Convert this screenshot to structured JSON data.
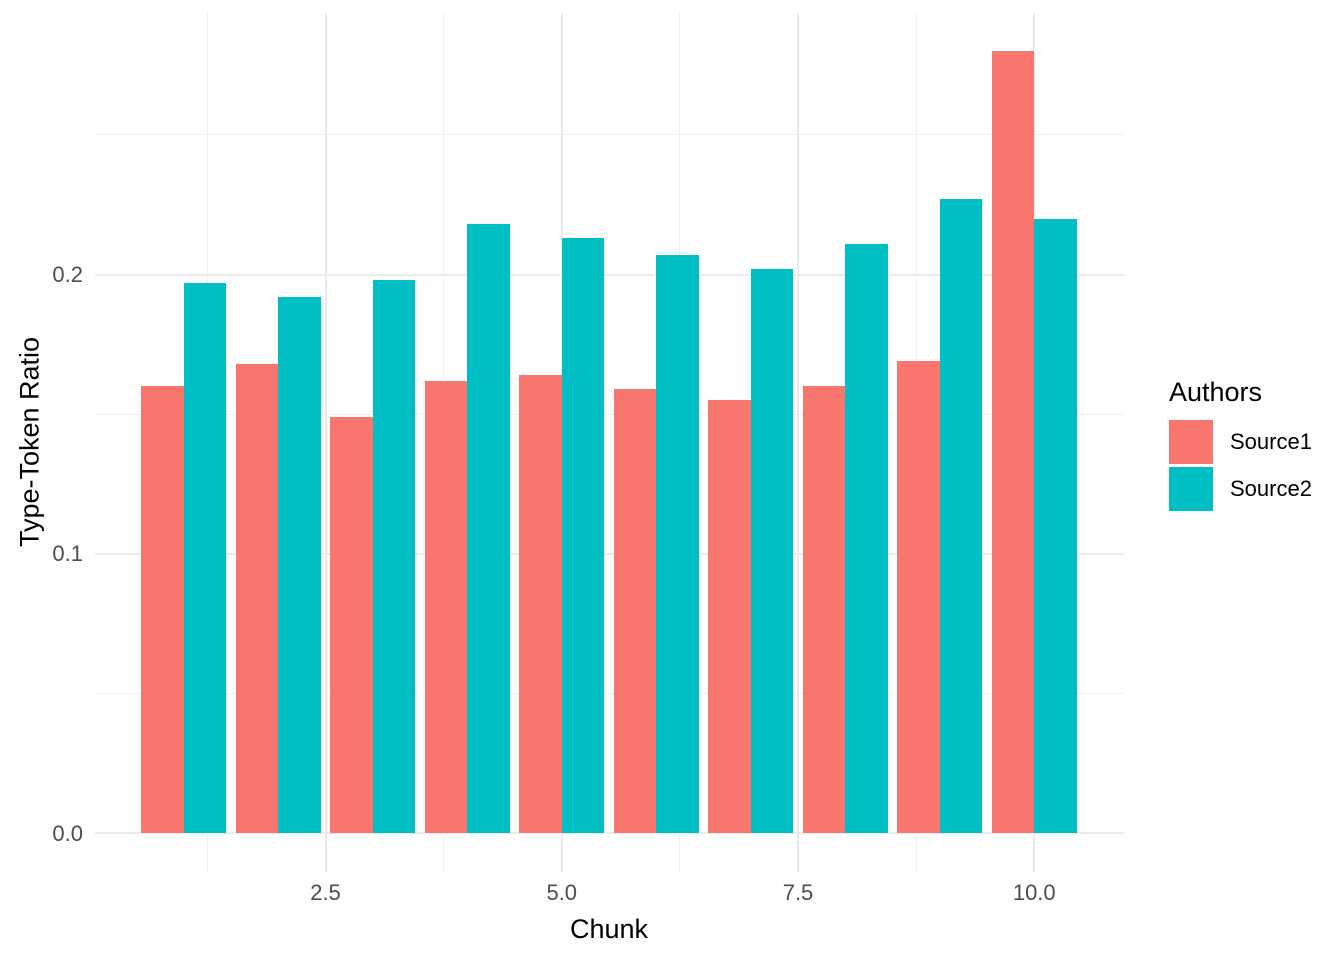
{
  "chart_data": {
    "type": "bar",
    "subtype": "grouped-dodged",
    "title": "",
    "xlabel": "Chunk",
    "ylabel": "Type-Token Ratio",
    "categories": [
      1,
      2,
      3,
      4,
      5,
      6,
      7,
      8,
      9,
      10
    ],
    "series": [
      {
        "name": "Source1",
        "color": "#F8766D",
        "values": [
          0.16,
          0.168,
          0.149,
          0.162,
          0.164,
          0.159,
          0.155,
          0.16,
          0.169,
          0.28
        ]
      },
      {
        "name": "Source2",
        "color": "#00BFC4",
        "values": [
          0.197,
          0.192,
          0.198,
          0.218,
          0.213,
          0.207,
          0.202,
          0.211,
          0.227,
          0.22
        ]
      }
    ],
    "x_axis": {
      "label": "Chunk",
      "ticks": [
        2.5,
        5.0,
        7.5,
        10.0
      ],
      "tick_labels": [
        "2.5",
        "5.0",
        "7.5",
        "10.0"
      ],
      "minor_gridlines": [
        1.25,
        3.75,
        6.25,
        8.75
      ],
      "range": [
        0.055,
        10.945
      ]
    },
    "y_axis": {
      "label": "Type-Token Ratio",
      "ticks": [
        0.0,
        0.1,
        0.2
      ],
      "tick_labels": [
        "0.0",
        "0.1",
        "0.2"
      ],
      "minor_gridlines": [
        0.05,
        0.15,
        0.25
      ],
      "range": [
        -0.0147,
        0.2936
      ]
    },
    "legend": {
      "title": "Authors",
      "position": "right",
      "entries": [
        "Source1",
        "Source2"
      ]
    },
    "grid": true,
    "style": {
      "background": "#FFFFFF",
      "grid_major_color": "#EBEBEB",
      "grid_minor_color": "#F1F1F1",
      "tick_label_color": "#4D4D4D",
      "title_color": "#000000"
    }
  }
}
